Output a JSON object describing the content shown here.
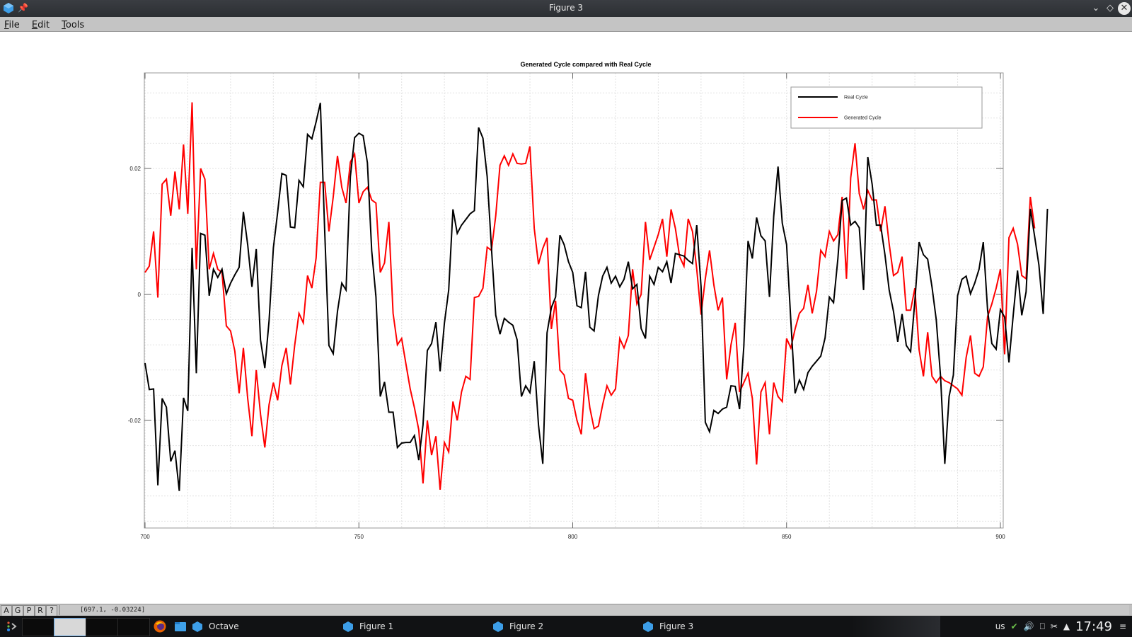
{
  "window": {
    "title": "Figure 3",
    "controls": [
      "minimize",
      "maximize",
      "close"
    ]
  },
  "menubar": {
    "items": [
      {
        "label": "File",
        "mnemonic": "F",
        "rest": "ile"
      },
      {
        "label": "Edit",
        "mnemonic": "E",
        "rest": "dit"
      },
      {
        "label": "Tools",
        "mnemonic": "T",
        "rest": "ools"
      }
    ]
  },
  "statusbar": {
    "buttons": [
      "A",
      "G",
      "P",
      "R",
      "?"
    ],
    "coordinates": "[697.1, -0.03224]"
  },
  "taskbar": {
    "tasks": [
      {
        "label": "Octave"
      },
      {
        "label": "Figure 1"
      },
      {
        "label": "Figure 2"
      },
      {
        "label": "Figure 3"
      }
    ],
    "keyboard_layout": "us",
    "clock": "17:49"
  },
  "colors": {
    "real": "#000000",
    "generated": "#ff0000"
  },
  "chart_data": {
    "type": "line",
    "title": "Generated Cycle compared with Real Cycle",
    "xlabel": "",
    "ylabel": "",
    "xlim": [
      700,
      900
    ],
    "ylim": [
      -0.037,
      0.035
    ],
    "xticks": [
      700,
      750,
      800,
      850,
      900
    ],
    "xtick_labels": [
      "700",
      "750",
      "800",
      "850",
      "900"
    ],
    "yticks": [
      -0.02,
      0,
      0.02
    ],
    "ytick_labels": [
      "-0.02",
      "0",
      "0.02"
    ],
    "grid": true,
    "legend_position": "northeast",
    "legend": [
      "Real Cycle",
      "Generated Cycle"
    ],
    "x_start": 700,
    "x_step": 1,
    "series": [
      {
        "name": "Real Cycle",
        "color": "#000000",
        "values": [
          -0.0109,
          -0.0151,
          -0.015,
          -0.0303,
          -0.0165,
          -0.0179,
          -0.0265,
          -0.0248,
          -0.0312,
          -0.0164,
          -0.0185,
          0.0074,
          -0.0125,
          0.0097,
          0.0094,
          -0.0002,
          0.004,
          0.0027,
          0.004,
          0.0001,
          0.0018,
          0.0031,
          0.0043,
          0.0131,
          0.0079,
          0.0012,
          0.0072,
          -0.0072,
          -0.0117,
          -0.0042,
          0.0074,
          0.013,
          0.0192,
          0.0189,
          0.0107,
          0.0106,
          0.0181,
          0.0171,
          0.0254,
          0.0247,
          0.0274,
          0.0304,
          0.0102,
          -0.0081,
          -0.0094,
          -0.0027,
          0.0018,
          0.0007,
          0.0187,
          0.0249,
          0.0256,
          0.0252,
          0.0209,
          0.0069,
          -0.0004,
          -0.0162,
          -0.0139,
          -0.0187,
          -0.0187,
          -0.0243,
          -0.0236,
          -0.0235,
          -0.0235,
          -0.0224,
          -0.0263,
          -0.0207,
          -0.0089,
          -0.0078,
          -0.0044,
          -0.0122,
          -0.0046,
          0.0007,
          0.0135,
          0.0097,
          0.011,
          0.0119,
          0.0128,
          0.0133,
          0.0265,
          0.0248,
          0.0187,
          0.0074,
          -0.0033,
          -0.0063,
          -0.0038,
          -0.0044,
          -0.0049,
          -0.0072,
          -0.0162,
          -0.0145,
          -0.0156,
          -0.0106,
          -0.0207,
          -0.0269,
          -0.0061,
          -0.0021,
          -0.0004,
          0.0094,
          0.0079,
          0.0052,
          0.0035,
          -0.0018,
          -0.0021,
          0.0036,
          -0.0052,
          -0.0058,
          -0.0002,
          0.0029,
          0.0043,
          0.0018,
          0.0029,
          0.0012,
          0.0024,
          0.0052,
          0.0009,
          0.0016,
          -0.0054,
          -0.007,
          0.0029,
          0.0016,
          0.0043,
          0.0036,
          0.0052,
          0.0018,
          0.0065,
          0.0063,
          0.0061,
          0.0054,
          0.0049,
          0.011,
          0.0012,
          -0.0203,
          -0.0218,
          -0.0184,
          -0.0189,
          -0.0182,
          -0.0179,
          -0.0145,
          -0.0146,
          -0.0182,
          -0.0083,
          0.0085,
          0.0057,
          0.0122,
          0.0093,
          0.0085,
          -0.0004,
          0.0124,
          0.0203,
          0.0113,
          0.0079,
          -0.0042,
          -0.0157,
          -0.0136,
          -0.0151,
          -0.0124,
          -0.0114,
          -0.0106,
          -0.0098,
          -0.0069,
          -0.0004,
          -0.0013,
          0.0057,
          0.0149,
          0.0153,
          0.011,
          0.0116,
          0.0106,
          0.0007,
          0.0218,
          0.0175,
          0.011,
          0.011,
          0.0063,
          0.0007,
          -0.0027,
          -0.0075,
          -0.0031,
          -0.0081,
          -0.0091,
          -0.001,
          0.0083,
          0.0063,
          0.0056,
          0.0012,
          -0.004,
          -0.013,
          -0.0269,
          -0.0162,
          -0.0128,
          -0.0002,
          0.0024,
          0.0029,
          0.0001,
          0.0018,
          0.004,
          0.0083,
          -0.0025,
          -0.0078,
          -0.0087,
          -0.0024,
          -0.0036,
          -0.0108,
          -0.0033,
          0.0038,
          -0.0033,
          0.0004,
          0.0136,
          0.0092,
          0.0047,
          -0.0031,
          0.0136
        ]
      },
      {
        "name": "Generated Cycle",
        "color": "#ff0000",
        "values": [
          0.0035,
          0.0045,
          0.01,
          -0.0005,
          0.0175,
          0.0183,
          0.0125,
          0.0195,
          0.0135,
          0.0238,
          0.0128,
          0.0305,
          0.004,
          0.02,
          0.0183,
          0.004,
          0.0065,
          0.004,
          0.0035,
          -0.005,
          -0.0058,
          -0.009,
          -0.0157,
          -0.0085,
          -0.0165,
          -0.0225,
          -0.012,
          -0.019,
          -0.0243,
          -0.0175,
          -0.014,
          -0.0168,
          -0.0113,
          -0.0085,
          -0.0143,
          -0.008,
          -0.003,
          -0.0045,
          0.003,
          0.001,
          0.0058,
          0.0178,
          0.0178,
          0.01,
          0.0155,
          0.022,
          0.017,
          0.0145,
          0.021,
          0.0223,
          0.0145,
          0.0163,
          0.017,
          0.015,
          0.0145,
          0.0035,
          0.005,
          0.0115,
          -0.003,
          -0.008,
          -0.007,
          -0.011,
          -0.015,
          -0.018,
          -0.0215,
          -0.03,
          -0.02,
          -0.0255,
          -0.0225,
          -0.031,
          -0.0235,
          -0.025,
          -0.017,
          -0.02,
          -0.0155,
          -0.013,
          -0.0135,
          -0.0005,
          -0.0003,
          0.001,
          0.0075,
          0.007,
          0.0125,
          0.0205,
          0.022,
          0.0205,
          0.0223,
          0.0208,
          0.0207,
          0.0208,
          0.0235,
          0.0105,
          0.0048,
          0.0073,
          0.009,
          -0.0055,
          -0.001,
          -0.012,
          -0.0128,
          -0.0165,
          -0.0168,
          -0.02,
          -0.0222,
          -0.0125,
          -0.018,
          -0.0213,
          -0.0209,
          -0.0175,
          -0.0145,
          -0.016,
          -0.015,
          -0.007,
          -0.0085,
          -0.0065,
          0.004,
          -0.0015,
          0.0,
          0.0115,
          0.0055,
          0.0075,
          0.0095,
          0.012,
          0.006,
          0.0135,
          0.0105,
          0.006,
          0.0045,
          0.012,
          0.01,
          0.004,
          -0.0032,
          0.0025,
          0.007,
          0.0015,
          -0.0025,
          -0.0005,
          -0.0135,
          -0.008,
          -0.0045,
          -0.0155,
          -0.014,
          -0.0125,
          -0.0165,
          -0.027,
          -0.0155,
          -0.014,
          -0.0222,
          -0.014,
          -0.0162,
          -0.017,
          -0.007,
          -0.0085,
          -0.0055,
          -0.003,
          -0.0022,
          0.0015,
          -0.003,
          0.0005,
          0.007,
          0.006,
          0.01,
          0.0085,
          0.0095,
          0.0155,
          0.0025,
          0.0185,
          0.024,
          0.016,
          0.0135,
          0.0165,
          0.015,
          0.015,
          0.01,
          0.014,
          0.008,
          0.003,
          0.0035,
          0.006,
          -0.0025,
          -0.0025,
          0.001,
          -0.0088,
          -0.013,
          -0.006,
          -0.013,
          -0.014,
          -0.013,
          -0.0137,
          -0.014,
          -0.0145,
          -0.015,
          -0.016,
          -0.01,
          -0.0065,
          -0.0125,
          -0.013,
          -0.0115,
          -0.0035,
          -0.0015,
          0.001,
          0.004,
          -0.0095,
          0.009,
          0.0105,
          0.008,
          0.003,
          0.0025,
          0.0155,
          0.0105
        ]
      }
    ]
  }
}
